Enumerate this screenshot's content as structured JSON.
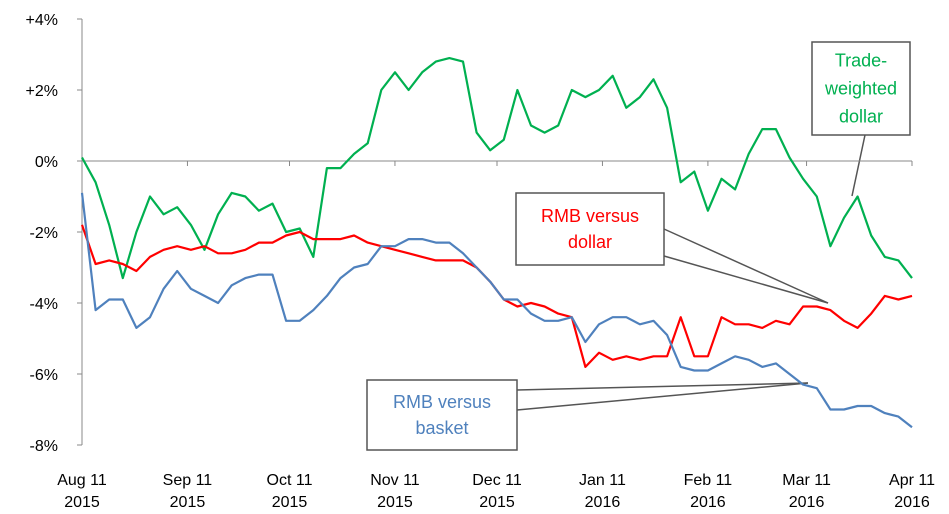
{
  "chart_data": {
    "type": "line",
    "x": [
      "2015-08-11",
      "2015-08-15",
      "2015-08-19",
      "2015-08-23",
      "2015-08-27",
      "2015-08-31",
      "2015-09-04",
      "2015-09-08",
      "2015-09-12",
      "2015-09-16",
      "2015-09-20",
      "2015-09-24",
      "2015-09-28",
      "2015-10-02",
      "2015-10-06",
      "2015-10-10",
      "2015-10-14",
      "2015-10-18",
      "2015-10-22",
      "2015-10-26",
      "2015-10-30",
      "2015-11-03",
      "2015-11-07",
      "2015-11-11",
      "2015-11-15",
      "2015-11-19",
      "2015-11-23",
      "2015-11-27",
      "2015-12-01",
      "2015-12-05",
      "2015-12-09",
      "2015-12-13",
      "2015-12-17",
      "2015-12-21",
      "2015-12-25",
      "2015-12-29",
      "2016-01-02",
      "2016-01-06",
      "2016-01-10",
      "2016-01-14",
      "2016-01-18",
      "2016-01-22",
      "2016-01-26",
      "2016-01-30",
      "2016-02-03",
      "2016-02-07",
      "2016-02-11",
      "2016-02-15",
      "2016-02-19",
      "2016-02-23",
      "2016-02-27",
      "2016-03-02",
      "2016-03-06",
      "2016-03-10",
      "2016-03-14",
      "2016-03-18",
      "2016-03-22",
      "2016-03-26",
      "2016-03-30",
      "2016-04-03",
      "2016-04-07",
      "2016-04-11"
    ],
    "series": [
      {
        "color": "#00b050",
        "values": [
          0.1,
          -0.6,
          -1.8,
          -3.3,
          -2.0,
          -1.0,
          -1.5,
          -1.3,
          -1.8,
          -2.5,
          -1.5,
          -0.9,
          -1.0,
          -1.4,
          -1.2,
          -2.0,
          -1.9,
          -2.7,
          -0.2,
          -0.2,
          0.2,
          0.5,
          2.0,
          2.5,
          2.0,
          2.5,
          2.8,
          2.9,
          2.8,
          0.8,
          0.3,
          0.6,
          2.0,
          1.0,
          0.8,
          1.0,
          2.0,
          1.8,
          2.0,
          2.4,
          1.5,
          1.8,
          2.3,
          1.5,
          -0.6,
          -0.3,
          -1.4,
          -0.5,
          -0.8,
          0.2,
          0.9,
          0.9,
          0.1,
          -0.5,
          -1.0,
          -2.4,
          -1.6,
          -1.0,
          -2.1,
          -2.7,
          -2.8,
          -3.3
        ]
      },
      {
        "color": "#ff0000",
        "values": [
          -1.8,
          -2.9,
          -2.8,
          -2.9,
          -3.1,
          -2.7,
          -2.5,
          -2.4,
          -2.5,
          -2.4,
          -2.6,
          -2.6,
          -2.5,
          -2.3,
          -2.3,
          -2.1,
          -2.0,
          -2.2,
          -2.2,
          -2.2,
          -2.1,
          -2.3,
          -2.4,
          -2.5,
          -2.6,
          -2.7,
          -2.8,
          -2.8,
          -2.8,
          -3.0,
          -3.4,
          -3.9,
          -4.1,
          -4.0,
          -4.1,
          -4.3,
          -4.4,
          -5.8,
          -5.4,
          -5.6,
          -5.5,
          -5.6,
          -5.5,
          -5.5,
          -4.4,
          -5.5,
          -5.5,
          -4.4,
          -4.6,
          -4.6,
          -4.7,
          -4.5,
          -4.6,
          -4.1,
          -4.1,
          -4.2,
          -4.5,
          -4.7,
          -4.3,
          -3.8,
          -3.9,
          -3.8
        ]
      },
      {
        "color": "#4f81bd",
        "values": [
          -0.9,
          -4.2,
          -3.9,
          -3.9,
          -4.7,
          -4.4,
          -3.6,
          -3.1,
          -3.6,
          -3.8,
          -4.0,
          -3.5,
          -3.3,
          -3.2,
          -3.2,
          -4.5,
          -4.5,
          -4.2,
          -3.8,
          -3.3,
          -3.0,
          -2.9,
          -2.4,
          -2.4,
          -2.2,
          -2.2,
          -2.3,
          -2.3,
          -2.6,
          -3.0,
          -3.4,
          -3.9,
          -3.9,
          -4.3,
          -4.5,
          -4.5,
          -4.4,
          -5.1,
          -4.6,
          -4.4,
          -4.4,
          -4.6,
          -4.5,
          -4.9,
          -5.8,
          -5.9,
          -5.9,
          -5.7,
          -5.5,
          -5.6,
          -5.8,
          -5.7,
          -6.0,
          -6.3,
          -6.4,
          -7.0,
          -7.0,
          -6.9,
          -6.9,
          -7.1,
          -7.2,
          -7.5
        ]
      }
    ],
    "xlim": [
      "2015-08-11",
      "2016-04-11"
    ],
    "xticks": [
      {
        "value": "2015-08-11",
        "label": [
          "Aug 11",
          "2015"
        ]
      },
      {
        "value": "2015-09-11",
        "label": [
          "Sep 11",
          "2015"
        ]
      },
      {
        "value": "2015-10-11",
        "label": [
          "Oct 11",
          "2015"
        ]
      },
      {
        "value": "2015-11-11",
        "label": [
          "Nov 11",
          "2015"
        ]
      },
      {
        "value": "2015-12-11",
        "label": [
          "Dec 11",
          "2015"
        ]
      },
      {
        "value": "2016-01-11",
        "label": [
          "Jan 11",
          "2016"
        ]
      },
      {
        "value": "2016-02-11",
        "label": [
          "Feb 11",
          "2016"
        ]
      },
      {
        "value": "2016-03-11",
        "label": [
          "Mar 11",
          "2016"
        ]
      },
      {
        "value": "2016-04-11",
        "label": [
          "Apr 11",
          "2016"
        ]
      }
    ],
    "ylim": [
      -8,
      4
    ],
    "yticks": [
      {
        "value": 4,
        "label": "+4%"
      },
      {
        "value": 2,
        "label": "+2%"
      },
      {
        "value": 0,
        "label": "0%"
      },
      {
        "value": -2,
        "label": "-2%"
      },
      {
        "value": -4,
        "label": "-4%"
      },
      {
        "value": -6,
        "label": "-6%"
      },
      {
        "value": -8,
        "label": "-8%"
      }
    ],
    "annotations": [
      {
        "text": [
          "Trade-",
          "weighted",
          "dollar"
        ],
        "color": "#00b050"
      },
      {
        "text": [
          "RMB versus",
          "dollar"
        ],
        "color": "#ff0000"
      },
      {
        "text": [
          "RMB versus",
          "basket"
        ],
        "color": "#4f81bd"
      }
    ]
  }
}
